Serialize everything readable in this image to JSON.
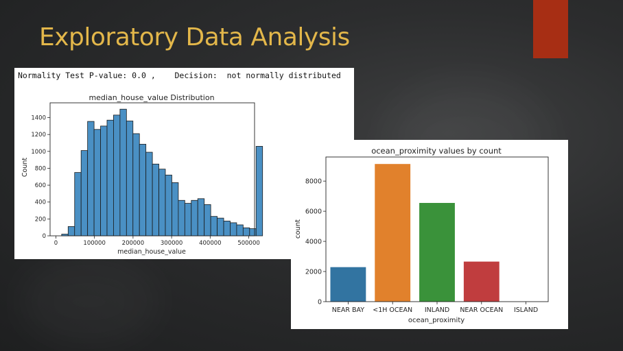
{
  "slide": {
    "title": "Exploratory Data Analysis",
    "accent_color": "#a72e14",
    "title_color": "#e3b74a"
  },
  "normality": {
    "text": "Normality Test P-value: 0.0 ,    Decision:  not normally distributed"
  },
  "chart_data": [
    {
      "type": "bar",
      "title": "median_house_value Distribution",
      "xlabel": "median_house_value",
      "ylabel": "Count",
      "xlim": [
        -15000,
        515000
      ],
      "ylim": [
        0,
        1575
      ],
      "xticks": [
        0,
        100000,
        200000,
        300000,
        400000,
        500000
      ],
      "yticks": [
        0,
        200,
        400,
        600,
        800,
        1000,
        1200,
        1400
      ],
      "bin_start": 15000,
      "bin_width": 16800,
      "values": [
        20,
        110,
        750,
        1010,
        1355,
        1260,
        1300,
        1370,
        1430,
        1500,
        1360,
        1210,
        1085,
        990,
        850,
        790,
        720,
        630,
        420,
        385,
        420,
        440,
        370,
        230,
        210,
        175,
        155,
        130,
        95,
        85,
        1060
      ],
      "color": "#4a90c4"
    },
    {
      "type": "bar",
      "title": "ocean_proximity values by count",
      "xlabel": "ocean_proximity",
      "ylabel": "count",
      "ylim": [
        0,
        9600
      ],
      "yticks": [
        0,
        2000,
        4000,
        6000,
        8000
      ],
      "categories": [
        "NEAR BAY",
        "<1H OCEAN",
        "INLAND",
        "NEAR OCEAN",
        "ISLAND"
      ],
      "values": [
        2290,
        9136,
        6551,
        2658,
        5
      ],
      "colors": [
        "#3274a1",
        "#e1812c",
        "#3a923a",
        "#c03d3e",
        "#9372b2"
      ]
    }
  ]
}
